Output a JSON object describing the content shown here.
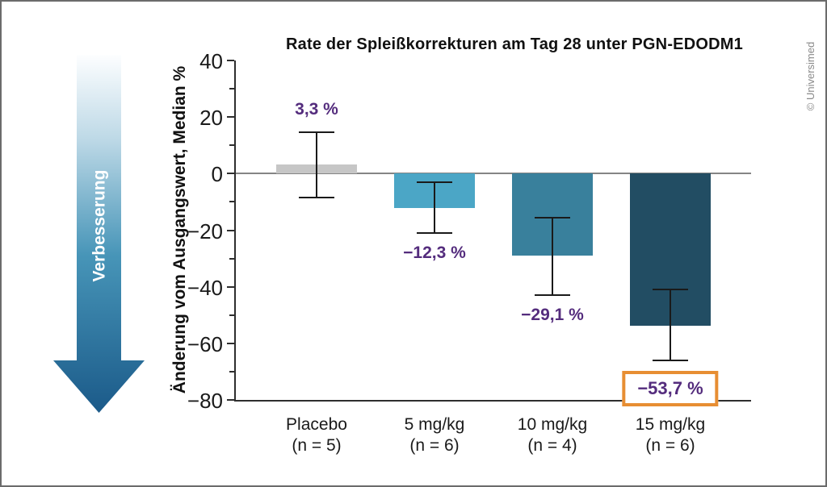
{
  "frame": {
    "copyright": "© Universimed",
    "border_color": "#6b6b6b"
  },
  "improvement_arrow": {
    "label": "Verbesserung",
    "gradient": [
      "#fdfeff",
      "#bcd8e6",
      "#4795b8",
      "#1b5a89"
    ],
    "text_color": "#ffffff"
  },
  "chart_data": {
    "type": "bar",
    "title": "Rate der Spleißkorrekturen am Tag 28 unter PGN-EDODM1",
    "xlabel": "",
    "ylabel": "Änderung vom Ausgangswert, Median %",
    "ylim": [
      -80,
      40
    ],
    "yticks_major": [
      40,
      20,
      0,
      -20,
      -40,
      -60,
      -80
    ],
    "yticks_minor": [
      30,
      10,
      -10,
      -30,
      -50,
      -70
    ],
    "grid": false,
    "legend": false,
    "categories": [
      {
        "line1": "Placebo",
        "line2": "(n = 5)"
      },
      {
        "line1": "5 mg/kg",
        "line2": "(n = 6)"
      },
      {
        "line1": "10 mg/kg",
        "line2": "(n = 4)"
      },
      {
        "line1": "15 mg/kg",
        "line2": "(n = 6)"
      }
    ],
    "values": [
      3.3,
      -12.3,
      -29.1,
      -53.7
    ],
    "value_labels": [
      "3,3 %",
      "−12,3 %",
      "−29,1 %",
      "−53,7 %"
    ],
    "error_upper": [
      14.5,
      -3.0,
      -15.5,
      -41.0
    ],
    "error_lower": [
      -8.5,
      -21.0,
      -43.0,
      -66.0
    ],
    "bar_colors": [
      "#c6c6c6",
      "#4ba6c6",
      "#39809c",
      "#224d63"
    ],
    "value_label_color": "#542c7d",
    "highlight_box": {
      "index": 3,
      "border_color": "#e78e33",
      "label": "−53,7 %"
    },
    "axis_color": "#2e2e2e",
    "baseline_color": "#858585",
    "error_color": "#1a1a1a"
  }
}
